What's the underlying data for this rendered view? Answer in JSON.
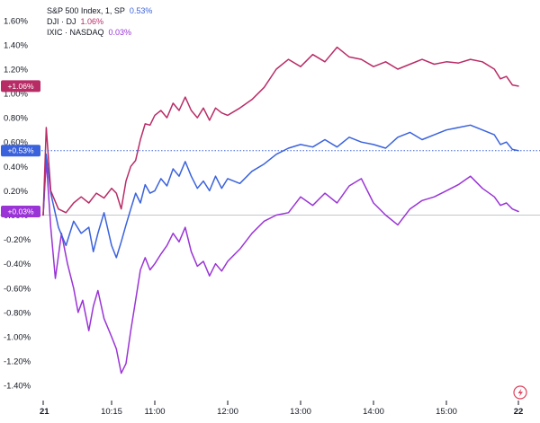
{
  "chart_data": {
    "type": "line",
    "x_ticks": [
      "21",
      "10:15",
      "11:00",
      "12:00",
      "13:00",
      "14:00",
      "15:00",
      "22"
    ],
    "y_ticks": [
      "1.60%",
      "1.40%",
      "1.20%",
      "1.00%",
      "0.80%",
      "0.60%",
      "0.40%",
      "0.20%",
      "0.00%",
      "-0.20%",
      "-0.40%",
      "-0.60%",
      "-0.80%",
      "-1.00%",
      "-1.20%",
      "-1.40%"
    ],
    "ylim": [
      -1.48,
      1.65
    ],
    "grid": false,
    "zero_line": true,
    "legend_position": "top-left",
    "series": [
      {
        "legend_label": "S&P 500 Index, 1, SP",
        "legend_value": "0.53%",
        "badge": "+0.53%",
        "color": "#3a62dc",
        "last_value": 0.53,
        "points": [
          [
            "9:30",
            0.0
          ],
          [
            "9:32",
            0.5
          ],
          [
            "9:35",
            0.18
          ],
          [
            "9:40",
            -0.1
          ],
          [
            "9:45",
            -0.25
          ],
          [
            "9:50",
            -0.05
          ],
          [
            "9:55",
            -0.15
          ],
          [
            "10:00",
            -0.1
          ],
          [
            "10:03",
            -0.3
          ],
          [
            "10:06",
            -0.15
          ],
          [
            "10:10",
            0.02
          ],
          [
            "10:15",
            -0.25
          ],
          [
            "10:20",
            -0.35
          ],
          [
            "10:25",
            -0.22
          ],
          [
            "10:30",
            -0.08
          ],
          [
            "10:35",
            0.05
          ],
          [
            "10:40",
            0.18
          ],
          [
            "10:45",
            0.1
          ],
          [
            "10:50",
            0.25
          ],
          [
            "10:55",
            0.18
          ],
          [
            "11:00",
            0.2
          ],
          [
            "11:05",
            0.3
          ],
          [
            "11:10",
            0.24
          ],
          [
            "11:15",
            0.38
          ],
          [
            "11:20",
            0.32
          ],
          [
            "11:25",
            0.44
          ],
          [
            "11:30",
            0.32
          ],
          [
            "11:35",
            0.22
          ],
          [
            "11:40",
            0.28
          ],
          [
            "11:45",
            0.2
          ],
          [
            "11:50",
            0.32
          ],
          [
            "11:55",
            0.22
          ],
          [
            "12:00",
            0.3
          ],
          [
            "12:10",
            0.26
          ],
          [
            "12:20",
            0.36
          ],
          [
            "12:30",
            0.42
          ],
          [
            "12:40",
            0.5
          ],
          [
            "12:50",
            0.55
          ],
          [
            "13:00",
            0.58
          ],
          [
            "13:10",
            0.56
          ],
          [
            "13:20",
            0.62
          ],
          [
            "13:30",
            0.56
          ],
          [
            "13:40",
            0.64
          ],
          [
            "13:50",
            0.6
          ],
          [
            "14:00",
            0.58
          ],
          [
            "14:10",
            0.55
          ],
          [
            "14:20",
            0.64
          ],
          [
            "14:30",
            0.68
          ],
          [
            "14:40",
            0.62
          ],
          [
            "14:50",
            0.66
          ],
          [
            "15:00",
            0.7
          ],
          [
            "15:10",
            0.72
          ],
          [
            "15:20",
            0.74
          ],
          [
            "15:30",
            0.7
          ],
          [
            "15:40",
            0.66
          ],
          [
            "15:45",
            0.58
          ],
          [
            "15:50",
            0.6
          ],
          [
            "15:55",
            0.54
          ],
          [
            "16:00",
            0.53
          ]
        ]
      },
      {
        "legend_label": "DJI · DJ",
        "legend_value": "1.06%",
        "badge": "+1.06%",
        "color": "#b82c66",
        "last_value": 1.06,
        "points": [
          [
            "9:30",
            0.0
          ],
          [
            "9:32",
            0.72
          ],
          [
            "9:35",
            0.2
          ],
          [
            "9:40",
            0.05
          ],
          [
            "9:45",
            0.02
          ],
          [
            "9:50",
            0.1
          ],
          [
            "9:55",
            0.15
          ],
          [
            "10:00",
            0.1
          ],
          [
            "10:05",
            0.18
          ],
          [
            "10:10",
            0.14
          ],
          [
            "10:15",
            0.22
          ],
          [
            "10:20",
            0.18
          ],
          [
            "10:25",
            0.05
          ],
          [
            "10:30",
            0.28
          ],
          [
            "10:35",
            0.4
          ],
          [
            "10:40",
            0.45
          ],
          [
            "10:45",
            0.62
          ],
          [
            "10:50",
            0.75
          ],
          [
            "10:55",
            0.74
          ],
          [
            "11:00",
            0.82
          ],
          [
            "11:05",
            0.86
          ],
          [
            "11:10",
            0.8
          ],
          [
            "11:15",
            0.92
          ],
          [
            "11:20",
            0.86
          ],
          [
            "11:25",
            0.97
          ],
          [
            "11:30",
            0.86
          ],
          [
            "11:35",
            0.8
          ],
          [
            "11:40",
            0.88
          ],
          [
            "11:45",
            0.78
          ],
          [
            "11:50",
            0.88
          ],
          [
            "11:55",
            0.84
          ],
          [
            "12:00",
            0.82
          ],
          [
            "12:10",
            0.88
          ],
          [
            "12:20",
            0.95
          ],
          [
            "12:30",
            1.05
          ],
          [
            "12:40",
            1.2
          ],
          [
            "12:50",
            1.28
          ],
          [
            "13:00",
            1.22
          ],
          [
            "13:10",
            1.32
          ],
          [
            "13:20",
            1.26
          ],
          [
            "13:30",
            1.38
          ],
          [
            "13:40",
            1.3
          ],
          [
            "13:50",
            1.28
          ],
          [
            "14:00",
            1.22
          ],
          [
            "14:10",
            1.26
          ],
          [
            "14:20",
            1.2
          ],
          [
            "14:30",
            1.24
          ],
          [
            "14:40",
            1.28
          ],
          [
            "14:50",
            1.24
          ],
          [
            "15:00",
            1.26
          ],
          [
            "15:10",
            1.25
          ],
          [
            "15:20",
            1.28
          ],
          [
            "15:30",
            1.26
          ],
          [
            "15:40",
            1.2
          ],
          [
            "15:45",
            1.12
          ],
          [
            "15:50",
            1.14
          ],
          [
            "15:55",
            1.07
          ],
          [
            "16:00",
            1.06
          ]
        ]
      },
      {
        "legend_label": "IXIC · NASDAQ",
        "legend_value": "0.03%",
        "badge": "+0.03%",
        "color": "#9a34d6",
        "last_value": 0.03,
        "points": [
          [
            "9:30",
            0.0
          ],
          [
            "9:32",
            0.45
          ],
          [
            "9:35",
            -0.1
          ],
          [
            "9:38",
            -0.52
          ],
          [
            "9:42",
            -0.15
          ],
          [
            "9:46",
            -0.4
          ],
          [
            "9:50",
            -0.6
          ],
          [
            "9:53",
            -0.8
          ],
          [
            "9:56",
            -0.7
          ],
          [
            "10:00",
            -0.95
          ],
          [
            "10:03",
            -0.75
          ],
          [
            "10:06",
            -0.62
          ],
          [
            "10:10",
            -0.85
          ],
          [
            "10:15",
            -1.0
          ],
          [
            "10:20",
            -1.1
          ],
          [
            "10:25",
            -1.3
          ],
          [
            "10:30",
            -1.22
          ],
          [
            "10:35",
            -0.95
          ],
          [
            "10:40",
            -0.7
          ],
          [
            "10:45",
            -0.45
          ],
          [
            "10:50",
            -0.35
          ],
          [
            "10:55",
            -0.45
          ],
          [
            "11:00",
            -0.4
          ],
          [
            "11:05",
            -0.32
          ],
          [
            "11:10",
            -0.25
          ],
          [
            "11:15",
            -0.15
          ],
          [
            "11:20",
            -0.22
          ],
          [
            "11:25",
            -0.1
          ],
          [
            "11:30",
            -0.3
          ],
          [
            "11:35",
            -0.42
          ],
          [
            "11:40",
            -0.38
          ],
          [
            "11:45",
            -0.5
          ],
          [
            "11:50",
            -0.4
          ],
          [
            "11:55",
            -0.46
          ],
          [
            "12:00",
            -0.38
          ],
          [
            "12:10",
            -0.28
          ],
          [
            "12:20",
            -0.15
          ],
          [
            "12:30",
            -0.05
          ],
          [
            "12:40",
            0.0
          ],
          [
            "12:50",
            0.02
          ],
          [
            "13:00",
            0.15
          ],
          [
            "13:10",
            0.08
          ],
          [
            "13:20",
            0.18
          ],
          [
            "13:30",
            0.1
          ],
          [
            "13:40",
            0.24
          ],
          [
            "13:50",
            0.3
          ],
          [
            "14:00",
            0.1
          ],
          [
            "14:10",
            0.0
          ],
          [
            "14:20",
            -0.08
          ],
          [
            "14:30",
            0.05
          ],
          [
            "14:40",
            0.12
          ],
          [
            "14:50",
            0.15
          ],
          [
            "15:00",
            0.2
          ],
          [
            "15:10",
            0.25
          ],
          [
            "15:20",
            0.32
          ],
          [
            "15:30",
            0.22
          ],
          [
            "15:40",
            0.15
          ],
          [
            "15:45",
            0.08
          ],
          [
            "15:50",
            0.1
          ],
          [
            "15:55",
            0.05
          ],
          [
            "16:00",
            0.03
          ]
        ]
      }
    ]
  },
  "chart_marks": {
    "tick_color": "#131722",
    "zero_line_color": "#c3c6cc",
    "guide_line_color": "#3a62dc",
    "lightning_icon_color": "#e0415a",
    "icon": "lightning-bolt-icon"
  }
}
